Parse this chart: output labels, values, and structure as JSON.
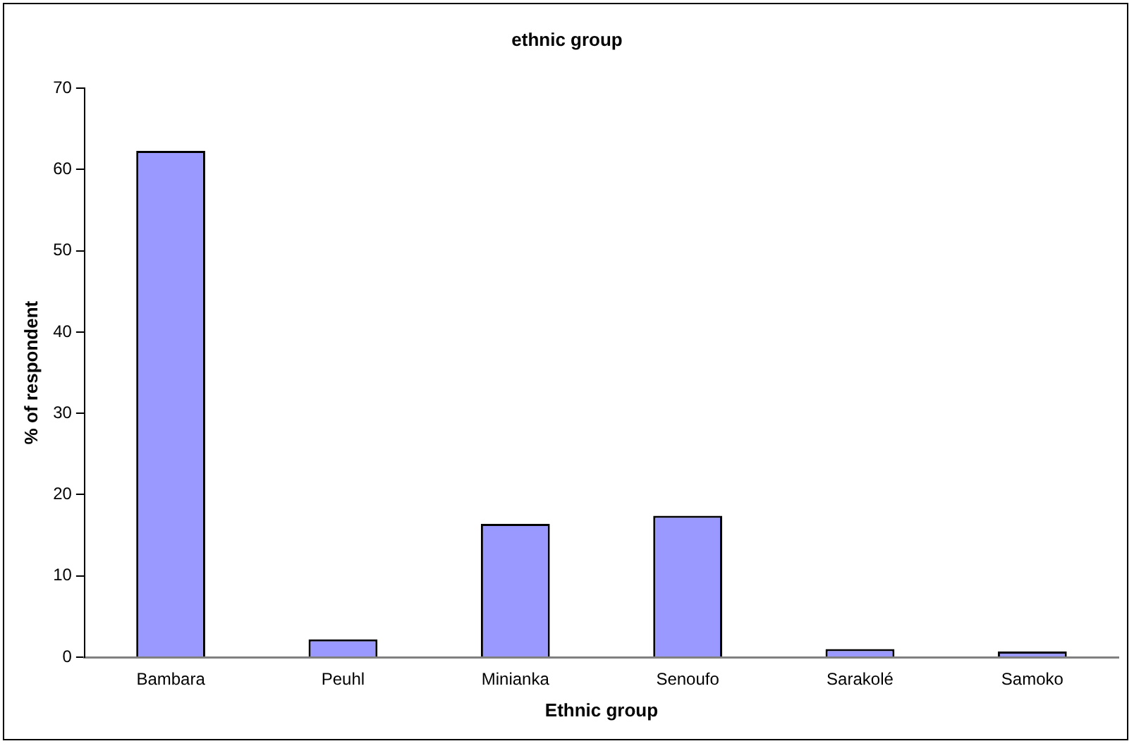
{
  "chart_data": {
    "type": "bar",
    "title": "ethnic group",
    "xlabel": "Ethnic group",
    "ylabel": "% of respondent",
    "categories": [
      "Bambara",
      "Peuhl",
      "Minianka",
      "Senoufo",
      "Sarakolé",
      "Samoko"
    ],
    "values": [
      62.3,
      2.2,
      16.4,
      17.4,
      1.0,
      0.7
    ],
    "color": "#9999ff",
    "ylim": [
      0,
      70
    ],
    "yticks": [
      0,
      10,
      20,
      30,
      40,
      50,
      60,
      70
    ],
    "grid": false,
    "legend": false
  }
}
